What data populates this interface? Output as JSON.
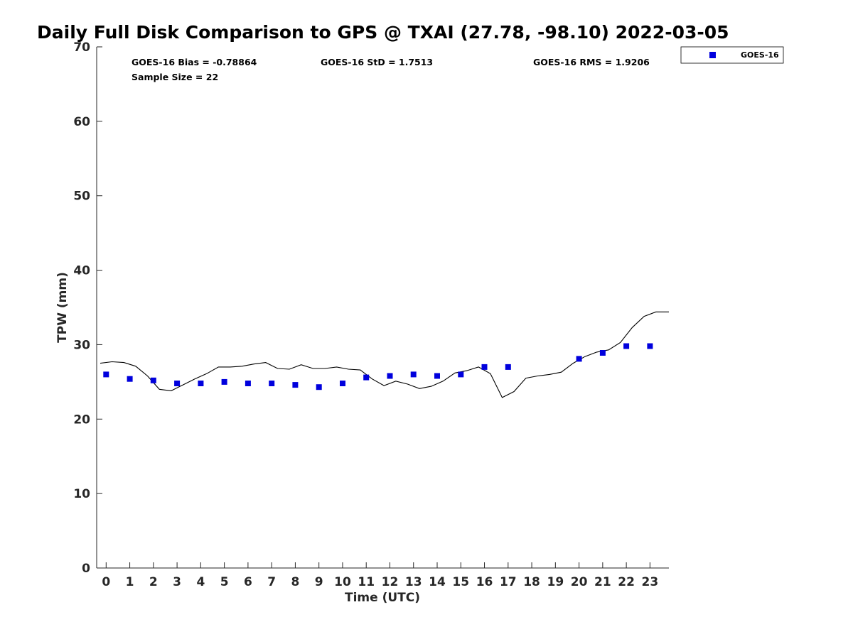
{
  "chart_data": {
    "type": "scatter",
    "title": "Daily Full Disk Comparison to GPS @ TXAI (27.78, -98.10) 2022-03-05",
    "xlabel": "Time (UTC)",
    "ylabel": "TPW (mm)",
    "xlim": [
      -0.4,
      23.8
    ],
    "ylim": [
      0,
      70
    ],
    "x_ticks": [
      0,
      1,
      2,
      3,
      4,
      5,
      6,
      7,
      8,
      9,
      10,
      11,
      12,
      13,
      14,
      15,
      16,
      17,
      18,
      19,
      20,
      21,
      22,
      23
    ],
    "y_ticks": [
      0,
      10,
      20,
      30,
      40,
      50,
      60,
      70
    ],
    "grid": false,
    "legend_placement": "outside-top-right",
    "stats": [
      "GOES-16 Bias = -0.78864",
      "GOES-16 StD = 1.7513",
      "GOES-16 RMS = 1.9206",
      "Sample Size = 22"
    ],
    "series": [
      {
        "name": "GOES-16",
        "kind": "scatter",
        "marker": "square",
        "color": "#0000dd",
        "points": [
          [
            0,
            26.0
          ],
          [
            1,
            25.4
          ],
          [
            2,
            25.2
          ],
          [
            3,
            24.8
          ],
          [
            4,
            24.8
          ],
          [
            5,
            25.0
          ],
          [
            6,
            24.8
          ],
          [
            7,
            24.8
          ],
          [
            8,
            24.6
          ],
          [
            9,
            24.3
          ],
          [
            10,
            24.8
          ],
          [
            11,
            25.6
          ],
          [
            12,
            25.8
          ],
          [
            13,
            26.0
          ],
          [
            14,
            25.8
          ],
          [
            15,
            26.0
          ],
          [
            16,
            27.0
          ],
          [
            17,
            27.0
          ],
          [
            20,
            28.1
          ],
          [
            21,
            28.9
          ],
          [
            22,
            29.8
          ],
          [
            23,
            29.8
          ]
        ]
      },
      {
        "kind": "line",
        "color": "#000000",
        "points": [
          [
            -0.25,
            27.5
          ],
          [
            0.25,
            27.7
          ],
          [
            0.75,
            27.6
          ],
          [
            1.25,
            27.1
          ],
          [
            1.75,
            25.8
          ],
          [
            2.25,
            24.0
          ],
          [
            2.75,
            23.8
          ],
          [
            3.25,
            24.6
          ],
          [
            3.75,
            25.4
          ],
          [
            4.25,
            26.1
          ],
          [
            4.75,
            27.0
          ],
          [
            5.25,
            27.0
          ],
          [
            5.75,
            27.1
          ],
          [
            6.25,
            27.4
          ],
          [
            6.75,
            27.6
          ],
          [
            7.25,
            26.8
          ],
          [
            7.75,
            26.7
          ],
          [
            8.25,
            27.3
          ],
          [
            8.75,
            26.8
          ],
          [
            9.25,
            26.8
          ],
          [
            9.75,
            27.0
          ],
          [
            10.25,
            26.7
          ],
          [
            10.75,
            26.6
          ],
          [
            11.25,
            25.4
          ],
          [
            11.75,
            24.5
          ],
          [
            12.25,
            25.1
          ],
          [
            12.75,
            24.7
          ],
          [
            13.25,
            24.1
          ],
          [
            13.75,
            24.4
          ],
          [
            14.25,
            25.1
          ],
          [
            14.75,
            26.2
          ],
          [
            15.25,
            26.5
          ],
          [
            15.75,
            27.0
          ],
          [
            16.25,
            26.1
          ],
          [
            16.75,
            22.9
          ],
          [
            17.25,
            23.7
          ],
          [
            17.75,
            25.5
          ],
          [
            18.25,
            25.8
          ],
          [
            18.75,
            26.0
          ],
          [
            19.25,
            26.3
          ],
          [
            19.75,
            27.5
          ],
          [
            20.25,
            28.4
          ],
          [
            20.75,
            29.0
          ],
          [
            21.25,
            29.3
          ],
          [
            21.75,
            30.3
          ],
          [
            22.25,
            32.3
          ],
          [
            22.75,
            33.8
          ],
          [
            23.25,
            34.4
          ],
          [
            23.8,
            34.4
          ]
        ]
      }
    ]
  }
}
